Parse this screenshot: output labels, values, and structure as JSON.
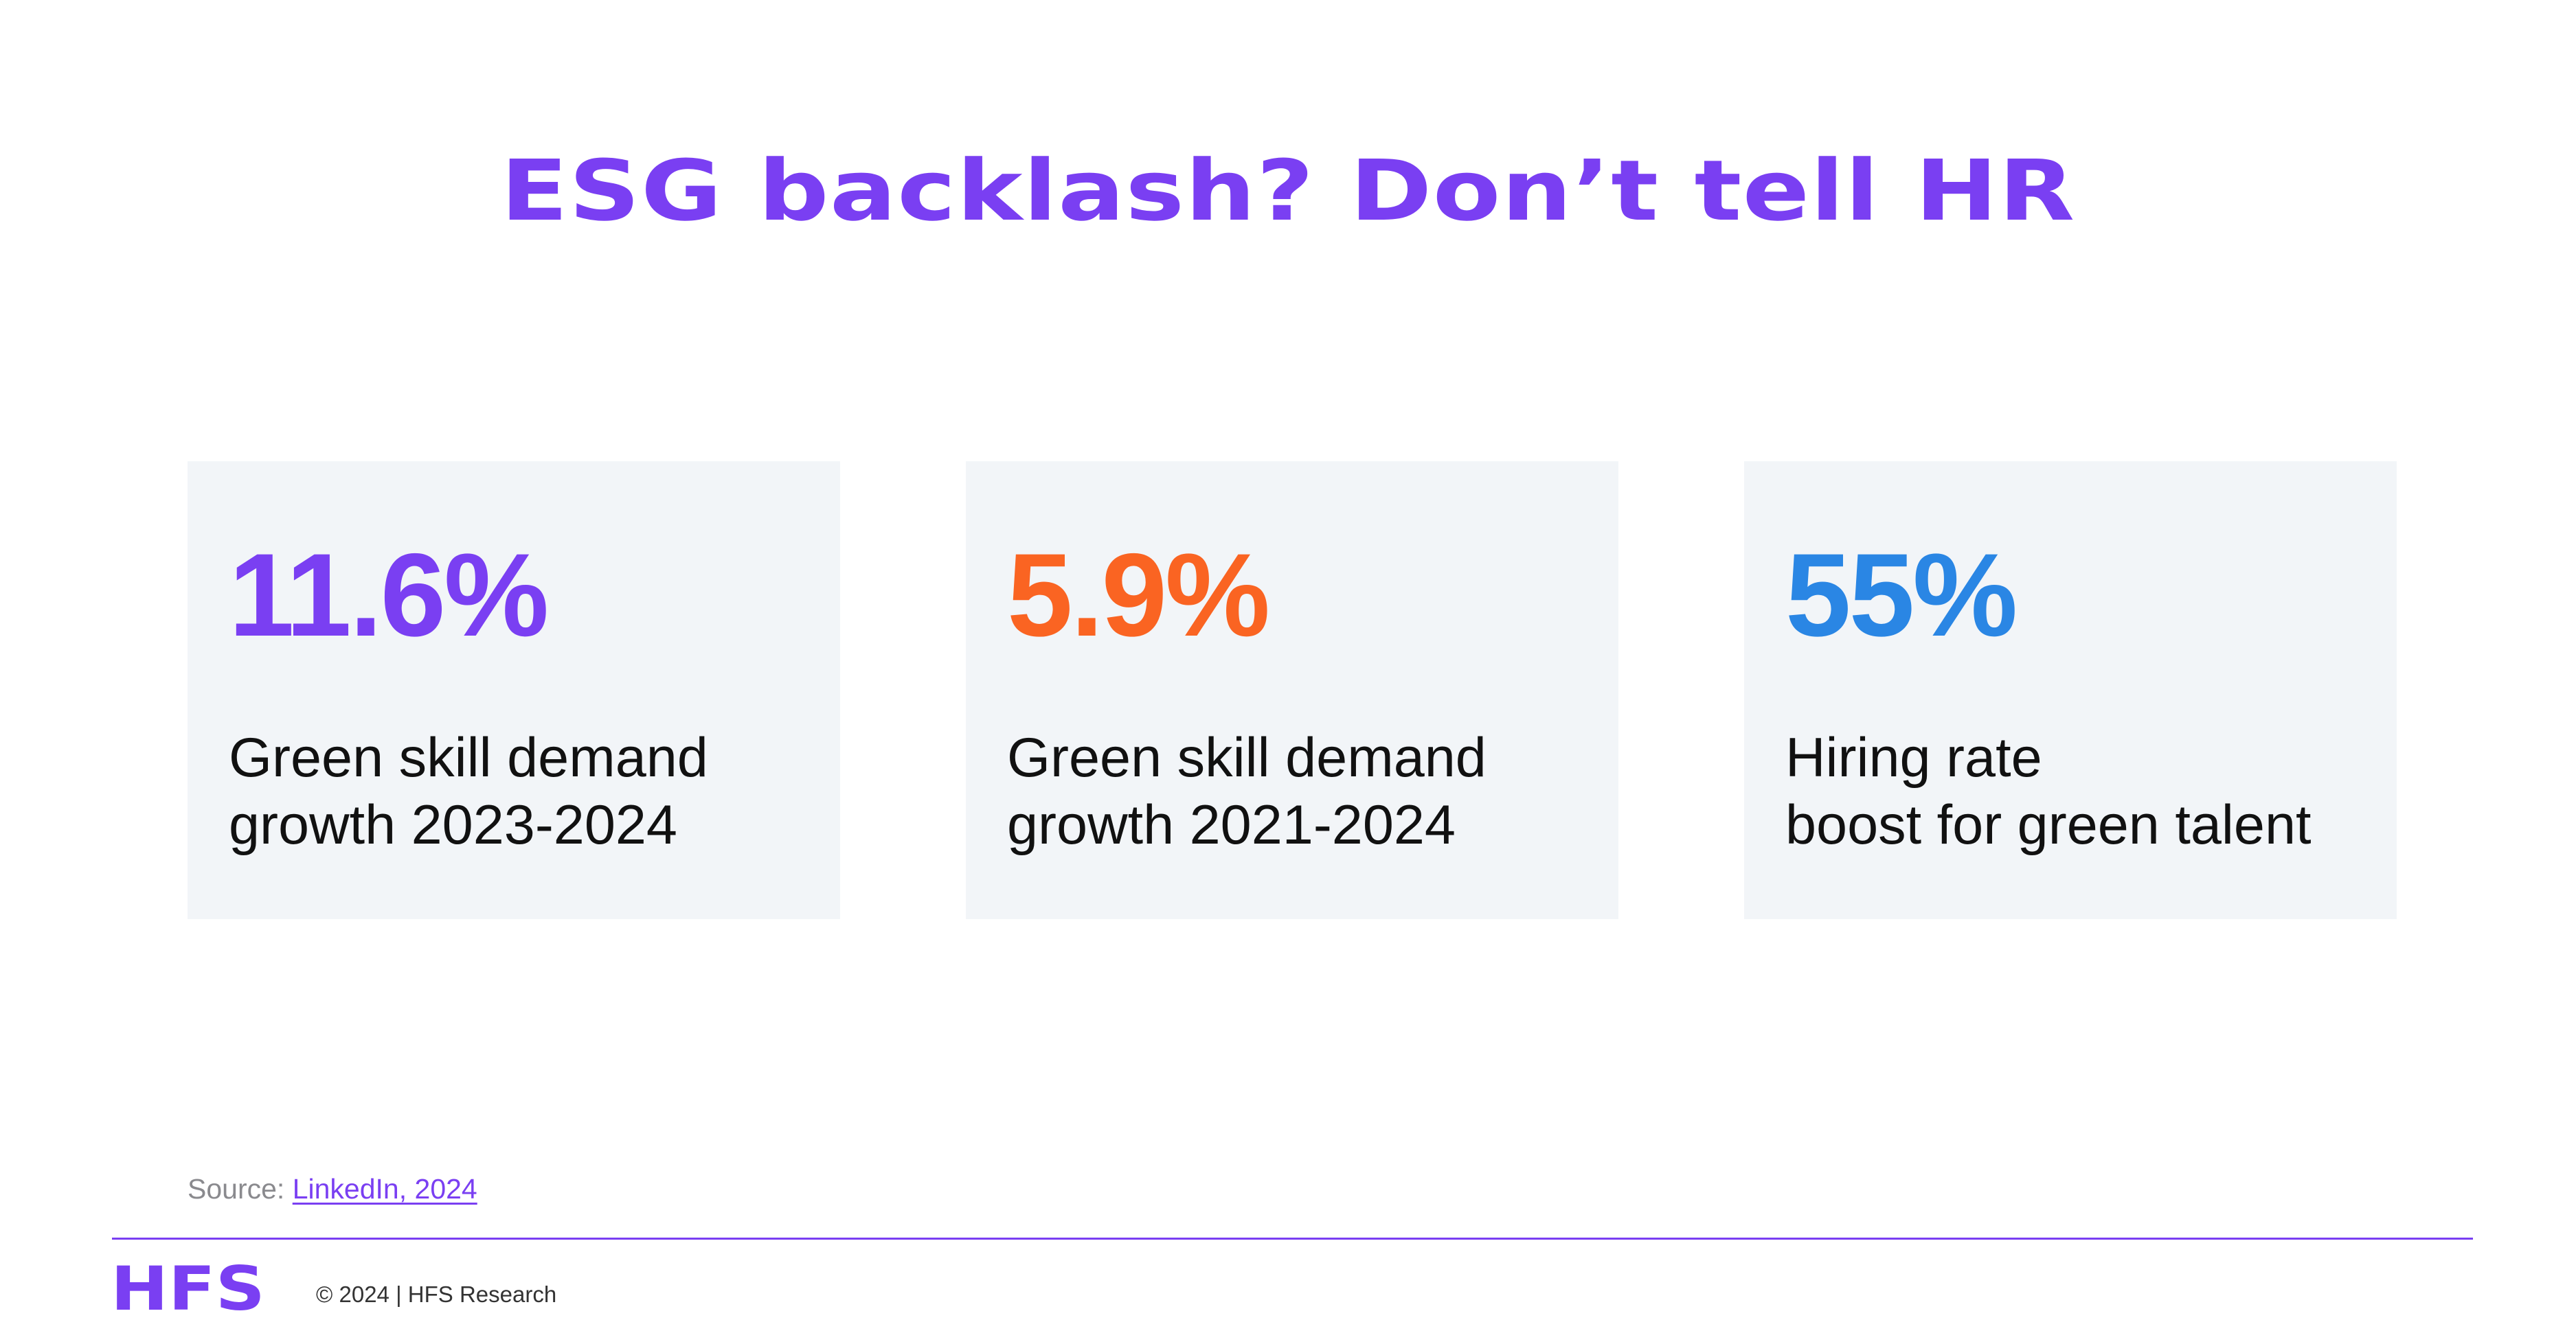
{
  "title": "ESG backlash? Don’t tell HR",
  "colors": {
    "title": "#7a3ff2",
    "stat_purple": "#7a3ff2",
    "stat_orange": "#fa6422",
    "stat_blue": "#2a86e4",
    "card_background": "#f2f5f8",
    "divider": "#7a3ff2",
    "logo": "#7a3ff2"
  },
  "cards": [
    {
      "value": "11.6%",
      "color": "#7a3ff2",
      "description_lines": [
        "Green skill demand",
        "growth 2023-2024"
      ]
    },
    {
      "value": "5.9%",
      "color": "#fa6422",
      "description_lines": [
        "Green skill demand",
        "growth 2021-2024"
      ]
    },
    {
      "value": "55%",
      "color": "#2a86e4",
      "description_lines": [
        "Hiring rate",
        "boost for green talent"
      ]
    }
  ],
  "source": {
    "label": "Source:",
    "link_text": "LinkedIn, 2024"
  },
  "footer": {
    "logo_text": "HFS",
    "copyright": "© 2024 | HFS Research"
  }
}
